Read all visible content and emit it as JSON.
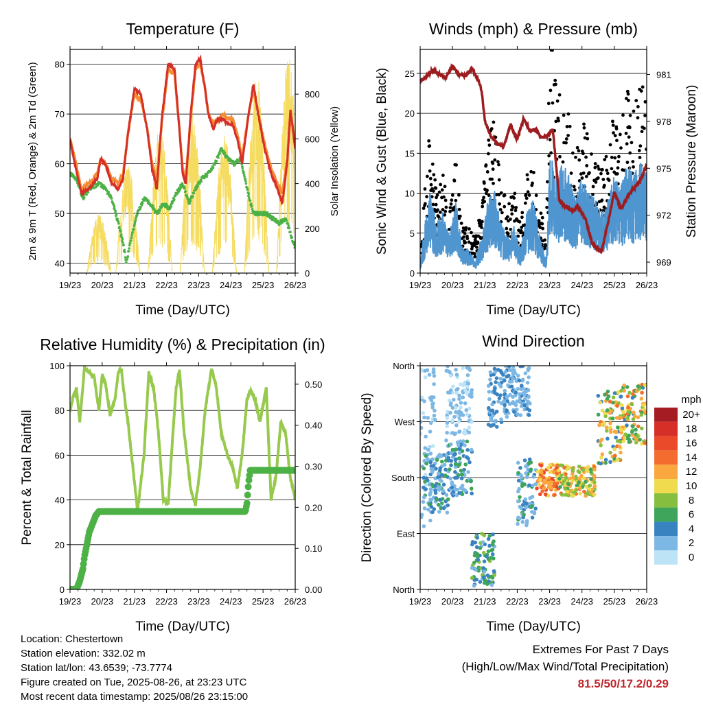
{
  "panels": {
    "temperature": {
      "title": "Temperature (F)",
      "ylabel": "2m & 9m T (Red, Orange) & 2m Td (Green)",
      "ylabel_right": "Solar Insolation (Yellow)",
      "xlabel": "Time (Day/UTC)"
    },
    "winds": {
      "title": "Winds (mph) & Pressure (mb)",
      "ylabel": "Sonic Wind & Gust (Blue, Black)",
      "ylabel_right": "Station Pressure (Maroon)",
      "xlabel": "Time (Day/UTC)"
    },
    "humidity": {
      "title": "Relative Humidity (%) & Precipitation (in)",
      "ylabel": "Percent & Total Rainfall",
      "xlabel": "Time (Day/UTC)"
    },
    "direction": {
      "title": "Wind Direction",
      "ylabel": "Direction (Colored By Speed)",
      "xlabel": "Time (Day/UTC)"
    }
  },
  "colorbar": {
    "unit": "mph",
    "labels": [
      "20+",
      "18",
      "16",
      "14",
      "12",
      "10",
      "8",
      "6",
      "4",
      "2",
      "0"
    ],
    "colors": [
      "#a51d22",
      "#d62f27",
      "#ea4a2a",
      "#f46d2f",
      "#fba740",
      "#f0db4f",
      "#86bf3f",
      "#3ea55a",
      "#3a83c1",
      "#7db7e3",
      "#bde3f7"
    ]
  },
  "colors": {
    "temp2m": "#d62f27",
    "temp9m": "#f58c33",
    "dewpoint": "#4db146",
    "solar": "#f5dc60",
    "wind": "#4f95cf",
    "gust": "#000000",
    "pressure": "#9c1c1f",
    "rh": "#96c94c",
    "precip": "#4db146",
    "extremes": "#c0272d"
  },
  "info": {
    "location": "Location: Chestertown",
    "elevation": "Station elevation: 332.02 m",
    "latlon": "Station lat/lon: 43.6539; -73.7774",
    "created": "Figure created on Tue, 2025-08-26, at 23:23 UTC",
    "recent": "Most recent data timestamp: 2025/08/26 23:15:00"
  },
  "extremes": {
    "title": "Extremes For Past 7 Days",
    "subtitle": "(High/Low/Max Wind/Total Precipitation)",
    "values": "81.5/50/17.2/0.29"
  },
  "chart_data": [
    {
      "type": "line",
      "title": "Temperature (F)",
      "xlabel": "Time (Day/UTC)",
      "ylabel": "2m & 9m T (Red, Orange) & 2m Td (Green)",
      "ylabel_right": "Solar Insolation (Yellow)",
      "x_ticks": [
        "19/23",
        "20/23",
        "21/23",
        "22/23",
        "23/23",
        "24/23",
        "25/23",
        "26/23"
      ],
      "xlim": [
        0,
        7
      ],
      "ylim": [
        38,
        83
      ],
      "yticks": [
        40,
        50,
        60,
        70,
        80
      ],
      "y2lim": [
        0,
        1000
      ],
      "y2ticks": [
        0,
        200,
        400,
        600,
        800
      ],
      "grid": "horizontal",
      "series": [
        {
          "name": "2m T",
          "x": [
            0,
            0.15,
            0.35,
            0.6,
            0.85,
            0.95,
            1.1,
            1.3,
            1.5,
            1.65,
            1.8,
            2.0,
            2.2,
            2.4,
            2.55,
            2.7,
            2.85,
            3.05,
            3.25,
            3.4,
            3.5,
            3.6,
            3.75,
            3.9,
            4.05,
            4.2,
            4.3,
            4.45,
            4.6,
            4.75,
            4.9,
            5.05,
            5.2,
            5.35,
            5.55,
            5.7,
            5.85,
            6.05,
            6.25,
            6.45,
            6.6,
            6.75,
            6.85,
            7.0
          ],
          "values": [
            65,
            60,
            54,
            55,
            57,
            61,
            60,
            56,
            55,
            57,
            66,
            75,
            74,
            67,
            59,
            55,
            69,
            80,
            79,
            67,
            58,
            56,
            70,
            80,
            81,
            75,
            70,
            67,
            69,
            69,
            68,
            68,
            65,
            60,
            70,
            76,
            70,
            63,
            58,
            55,
            52,
            60,
            71,
            63
          ]
        },
        {
          "name": "9m T",
          "x": [
            0,
            0.15,
            0.35,
            0.6,
            0.85,
            0.95,
            1.1,
            1.3,
            1.5,
            1.65,
            1.8,
            2.0,
            2.2,
            2.4,
            2.55,
            2.7,
            2.85,
            3.05,
            3.25,
            3.4,
            3.5,
            3.6,
            3.75,
            3.9,
            4.05,
            4.2,
            4.3,
            4.45,
            4.6,
            4.75,
            4.9,
            5.05,
            5.2,
            5.35,
            5.55,
            5.7,
            5.85,
            6.05,
            6.25,
            6.45,
            6.6,
            6.75,
            6.85,
            7.0
          ],
          "values": [
            65,
            61,
            55,
            56,
            58,
            61,
            60,
            57,
            56,
            58,
            66,
            74,
            73,
            67,
            60,
            57,
            68,
            79,
            78,
            67,
            59,
            57,
            69,
            79,
            80,
            75,
            70,
            68,
            69,
            70,
            69,
            69,
            66,
            61,
            70,
            75,
            70,
            64,
            59,
            56,
            54,
            61,
            70,
            64
          ]
        },
        {
          "name": "2m Td",
          "x": [
            0,
            0.2,
            0.4,
            0.6,
            0.9,
            1.1,
            1.3,
            1.5,
            1.65,
            1.75,
            1.9,
            2.1,
            2.3,
            2.5,
            2.7,
            2.9,
            3.1,
            3.3,
            3.5,
            3.7,
            3.9,
            4.1,
            4.3,
            4.5,
            4.7,
            4.9,
            5.1,
            5.3,
            5.5,
            5.7,
            5.9,
            6.1,
            6.3,
            6.5,
            6.7,
            6.9,
            7.0
          ],
          "values": [
            58,
            57,
            53,
            55,
            56,
            55,
            53,
            48,
            44,
            40,
            45,
            50,
            53,
            52,
            50,
            52,
            51,
            54,
            56,
            52,
            55,
            57,
            58,
            60,
            63,
            61,
            60,
            61,
            55,
            50,
            50,
            50,
            49,
            48,
            49,
            45,
            43
          ]
        },
        {
          "name": "Solar Insolation",
          "axis": "right",
          "peaks": [
            [
              0.9,
              270
            ],
            [
              1.8,
              480
            ],
            [
              2.8,
              660
            ],
            [
              3.8,
              720
            ],
            [
              4.8,
              620
            ],
            [
              5.8,
              900
            ],
            [
              6.8,
              980
            ]
          ]
        }
      ]
    },
    {
      "type": "scatter",
      "title": "Winds (mph) & Pressure (mb)",
      "xlabel": "Time (Day/UTC)",
      "ylabel": "Sonic Wind & Gust (Blue, Black)",
      "ylabel_right": "Station Pressure (Maroon)",
      "x_ticks": [
        "19/23",
        "20/23",
        "21/23",
        "22/23",
        "23/23",
        "24/23",
        "25/23",
        "26/23"
      ],
      "xlim": [
        0,
        7
      ],
      "ylim": [
        0,
        28
      ],
      "yticks": [
        0,
        5,
        10,
        15,
        20,
        25
      ],
      "y2lim": [
        968.3,
        982.6
      ],
      "y2ticks": [
        969,
        972,
        975,
        978,
        981
      ],
      "grid": "horizontal",
      "series": [
        {
          "name": "Pressure",
          "axis": "right",
          "x": [
            0,
            0.2,
            0.4,
            0.6,
            0.8,
            1.0,
            1.2,
            1.4,
            1.6,
            1.8,
            1.9,
            2.0,
            2.2,
            2.4,
            2.6,
            2.8,
            3.0,
            3.2,
            3.4,
            3.6,
            3.7,
            3.9,
            4.1,
            4.3,
            4.5,
            4.7,
            4.9,
            5.1,
            5.3,
            5.5,
            5.6,
            5.8,
            6.0,
            6.2,
            6.5,
            6.8,
            7.0
          ],
          "values": [
            980.5,
            980.9,
            981.3,
            981.0,
            980.8,
            981.5,
            981.0,
            980.9,
            981.4,
            980.6,
            980.0,
            978.0,
            977.0,
            976.5,
            976.5,
            977.8,
            976.8,
            978.2,
            977.4,
            977.5,
            977.0,
            977.0,
            977.5,
            973.0,
            972.5,
            972.3,
            972.5,
            971.8,
            970.3,
            969.8,
            969.7,
            971.5,
            973.5,
            972.4,
            973.5,
            974.2,
            975.2
          ]
        },
        {
          "name": "Sonic Wind",
          "x": [
            0,
            0.1,
            0.3,
            0.5,
            0.7,
            0.9,
            1.1,
            1.3,
            1.5,
            1.7,
            1.9,
            2.1,
            2.3,
            2.5,
            2.7,
            2.9,
            3.1,
            3.3,
            3.5,
            3.7,
            3.9,
            4.0,
            4.2,
            4.4,
            4.6,
            4.8,
            5.0,
            5.2,
            5.4,
            5.6,
            5.8,
            6.0,
            6.2,
            6.4,
            6.6,
            6.8,
            7.0
          ],
          "values": [
            1,
            3,
            7,
            4,
            5,
            3,
            6,
            2,
            2,
            1,
            3,
            6,
            7,
            4,
            3,
            4,
            2,
            5,
            6,
            3,
            1,
            10,
            8,
            9,
            8,
            6,
            8,
            7,
            6,
            5,
            6,
            8,
            7,
            9,
            8,
            9,
            8
          ]
        },
        {
          "name": "Gust",
          "x": [
            0,
            0.1,
            0.3,
            0.5,
            0.7,
            0.9,
            1.1,
            1.3,
            1.5,
            1.7,
            1.9,
            2.1,
            2.3,
            2.5,
            2.7,
            2.9,
            3.1,
            3.3,
            3.5,
            3.7,
            3.9,
            4.0,
            4.2,
            4.4,
            4.6,
            4.8,
            5.0,
            5.2,
            5.4,
            5.6,
            5.8,
            6.0,
            6.2,
            6.4,
            6.6,
            6.8,
            7.0
          ],
          "values": [
            2,
            6,
            13,
            7,
            9,
            5,
            10,
            4,
            4,
            3,
            6,
            12,
            14,
            8,
            6,
            8,
            4,
            9,
            11,
            6,
            3,
            22,
            16,
            15,
            14,
            11,
            15,
            12,
            10,
            9,
            11,
            14,
            13,
            16,
            14,
            17,
            15
          ]
        }
      ]
    },
    {
      "type": "line",
      "title": "Relative Humidity (%) & Precipitation (in)",
      "xlabel": "Time (Day/UTC)",
      "ylabel": "Percent & Total Rainfall",
      "x_ticks": [
        "19/23",
        "20/23",
        "21/23",
        "22/23",
        "23/23",
        "24/23",
        "25/23",
        "26/23"
      ],
      "xlim": [
        0,
        7
      ],
      "ylim": [
        0,
        100
      ],
      "yticks": [
        0,
        20,
        40,
        60,
        80,
        100
      ],
      "y2lim": [
        0,
        0.545
      ],
      "y2ticks": [
        "0.00",
        "0.10",
        "0.20",
        "0.30",
        "0.40",
        "0.50"
      ],
      "grid": "horizontal",
      "series": [
        {
          "name": "Relative Humidity",
          "x": [
            0,
            0.1,
            0.2,
            0.3,
            0.45,
            0.6,
            0.75,
            0.9,
            1.0,
            1.1,
            1.25,
            1.4,
            1.5,
            1.6,
            1.7,
            1.8,
            1.95,
            2.1,
            2.3,
            2.45,
            2.6,
            2.75,
            2.9,
            3.05,
            3.2,
            3.3,
            3.4,
            3.55,
            3.75,
            3.9,
            4.05,
            4.2,
            4.4,
            4.55,
            4.7,
            4.9,
            5.05,
            5.2,
            5.35,
            5.5,
            5.6,
            5.75,
            5.9,
            6.0,
            6.1,
            6.25,
            6.4,
            6.55,
            6.7,
            6.85,
            7.0
          ],
          "values": [
            80,
            86,
            90,
            75,
            99,
            97,
            95,
            80,
            96,
            92,
            78,
            85,
            97,
            98,
            85,
            75,
            55,
            35,
            60,
            97,
            90,
            70,
            40,
            38,
            70,
            90,
            98,
            70,
            45,
            38,
            55,
            80,
            99,
            90,
            70,
            60,
            55,
            45,
            60,
            85,
            89,
            85,
            75,
            82,
            90,
            40,
            50,
            75,
            70,
            50,
            40
          ]
        },
        {
          "name": "Total Rainfall",
          "axis": "right",
          "x": [
            0,
            0.2,
            0.3,
            0.4,
            0.45,
            0.5,
            0.55,
            0.6,
            0.65,
            0.7,
            0.75,
            0.8,
            0.9,
            1.0,
            5.45,
            5.5,
            5.55,
            5.6,
            7.0
          ],
          "values": [
            0,
            0,
            0.02,
            0.05,
            0.08,
            0.1,
            0.12,
            0.14,
            0.15,
            0.16,
            0.17,
            0.18,
            0.19,
            0.19,
            0.19,
            0.21,
            0.26,
            0.29,
            0.29
          ]
        }
      ]
    },
    {
      "type": "scatter",
      "title": "Wind Direction",
      "xlabel": "Time (Day/UTC)",
      "ylabel": "Direction (Colored By Speed)",
      "x_ticks": [
        "19/23",
        "20/23",
        "21/23",
        "22/23",
        "23/23",
        "24/23",
        "25/23",
        "26/23"
      ],
      "xlim": [
        0,
        7
      ],
      "y_ticks": [
        "North",
        "East",
        "South",
        "West",
        "North"
      ],
      "ylim": [
        0,
        360
      ],
      "grid": "horizontal",
      "clusters": [
        {
          "x": [
            0.0,
            0.5
          ],
          "dir": [
            100,
            360
          ],
          "speed": [
            0,
            3
          ]
        },
        {
          "x": [
            0.1,
            0.9
          ],
          "dir": [
            120,
            220
          ],
          "speed": [
            1,
            6
          ]
        },
        {
          "x": [
            0.8,
            1.6
          ],
          "dir": [
            150,
            240
          ],
          "speed": [
            1,
            6
          ]
        },
        {
          "x": [
            0.8,
            1.6
          ],
          "dir": [
            250,
            360
          ],
          "speed": [
            0,
            3
          ]
        },
        {
          "x": [
            1.6,
            2.3
          ],
          "dir": [
            5,
            90
          ],
          "speed": [
            2,
            8
          ]
        },
        {
          "x": [
            2.1,
            2.7
          ],
          "dir": [
            260,
            360
          ],
          "speed": [
            1,
            5
          ]
        },
        {
          "x": [
            2.6,
            3.4
          ],
          "dir": [
            280,
            360
          ],
          "speed": [
            1,
            4
          ]
        },
        {
          "x": [
            3.0,
            3.6
          ],
          "dir": [
            100,
            210
          ],
          "speed": [
            1,
            6
          ]
        },
        {
          "x": [
            3.6,
            4.3
          ],
          "dir": [
            150,
            205
          ],
          "speed": [
            9,
            16
          ]
        },
        {
          "x": [
            4.3,
            5.4
          ],
          "dir": [
            150,
            200
          ],
          "speed": [
            6,
            14
          ]
        },
        {
          "x": [
            5.5,
            6.2
          ],
          "dir": [
            200,
            320
          ],
          "speed": [
            3,
            14
          ]
        },
        {
          "x": [
            6.2,
            7.0
          ],
          "dir": [
            230,
            330
          ],
          "speed": [
            4,
            15
          ]
        }
      ]
    }
  ]
}
